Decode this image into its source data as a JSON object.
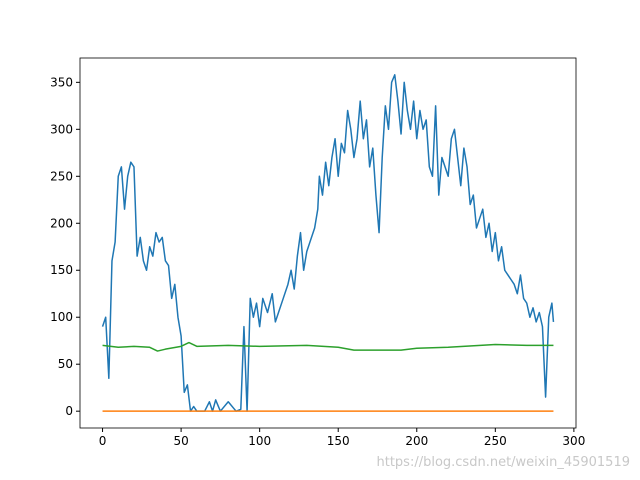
{
  "chart_data": {
    "type": "line",
    "xlim": [
      -14.35,
      301.35
    ],
    "xticks": [
      0,
      50,
      100,
      150,
      200,
      250,
      300
    ],
    "ylim": [
      -17.9,
      375.9
    ],
    "yticks": [
      0,
      50,
      100,
      150,
      200,
      250,
      300,
      350
    ],
    "watermark": "https://blog.csdn.net/weixin_45901519",
    "series": [
      {
        "color": "#1f77b4",
        "x": [
          0,
          2,
          4,
          6,
          8,
          10,
          12,
          14,
          16,
          18,
          20,
          22,
          24,
          26,
          28,
          30,
          32,
          34,
          36,
          38,
          40,
          42,
          44,
          46,
          48,
          50,
          52,
          54,
          56,
          58,
          60,
          65,
          68,
          70,
          72,
          75,
          80,
          85,
          88,
          90,
          92,
          94,
          96,
          98,
          100,
          102,
          105,
          108,
          110,
          115,
          118,
          120,
          122,
          124,
          126,
          128,
          130,
          132,
          135,
          137,
          138,
          140,
          142,
          144,
          146,
          148,
          150,
          152,
          154,
          156,
          158,
          160,
          162,
          164,
          166,
          168,
          170,
          172,
          174,
          176,
          178,
          180,
          182,
          184,
          186,
          188,
          190,
          192,
          194,
          196,
          198,
          200,
          202,
          204,
          206,
          208,
          210,
          212,
          214,
          216,
          218,
          220,
          222,
          224,
          226,
          228,
          230,
          232,
          234,
          236,
          238,
          240,
          242,
          244,
          246,
          248,
          250,
          252,
          254,
          256,
          258,
          260,
          262,
          264,
          266,
          268,
          270,
          272,
          274,
          276,
          278,
          280,
          282,
          284,
          286,
          287
        ],
        "values": [
          90,
          100,
          35,
          160,
          180,
          250,
          260,
          215,
          250,
          265,
          260,
          165,
          185,
          160,
          150,
          175,
          165,
          190,
          180,
          185,
          160,
          155,
          120,
          135,
          100,
          80,
          20,
          28,
          0,
          5,
          0,
          0,
          10,
          0,
          12,
          0,
          10,
          0,
          2,
          90,
          0,
          120,
          100,
          115,
          90,
          120,
          105,
          125,
          95,
          120,
          135,
          150,
          130,
          165,
          190,
          150,
          170,
          180,
          195,
          215,
          250,
          230,
          265,
          240,
          270,
          290,
          250,
          285,
          275,
          320,
          300,
          270,
          290,
          330,
          290,
          310,
          260,
          280,
          230,
          190,
          270,
          325,
          300,
          350,
          358,
          330,
          295,
          350,
          320,
          300,
          330,
          290,
          320,
          300,
          310,
          260,
          250,
          325,
          230,
          270,
          260,
          250,
          290,
          300,
          270,
          240,
          280,
          260,
          220,
          230,
          195,
          205,
          215,
          185,
          200,
          170,
          190,
          160,
          175,
          150,
          145,
          140,
          135,
          125,
          145,
          120,
          115,
          100,
          110,
          95,
          105,
          90,
          15,
          100,
          115,
          95
        ]
      },
      {
        "color": "#ff7f0e",
        "x": [
          0,
          287
        ],
        "values": [
          0,
          0
        ]
      },
      {
        "color": "#2ca02c",
        "x": [
          0,
          10,
          20,
          30,
          35,
          40,
          50,
          55,
          60,
          80,
          100,
          130,
          150,
          160,
          180,
          190,
          200,
          220,
          250,
          270,
          287
        ],
        "values": [
          70,
          68,
          69,
          68,
          64,
          66,
          69,
          73,
          69,
          70,
          69,
          70,
          68,
          65,
          65,
          65,
          67,
          68,
          71,
          70,
          70
        ]
      }
    ]
  }
}
